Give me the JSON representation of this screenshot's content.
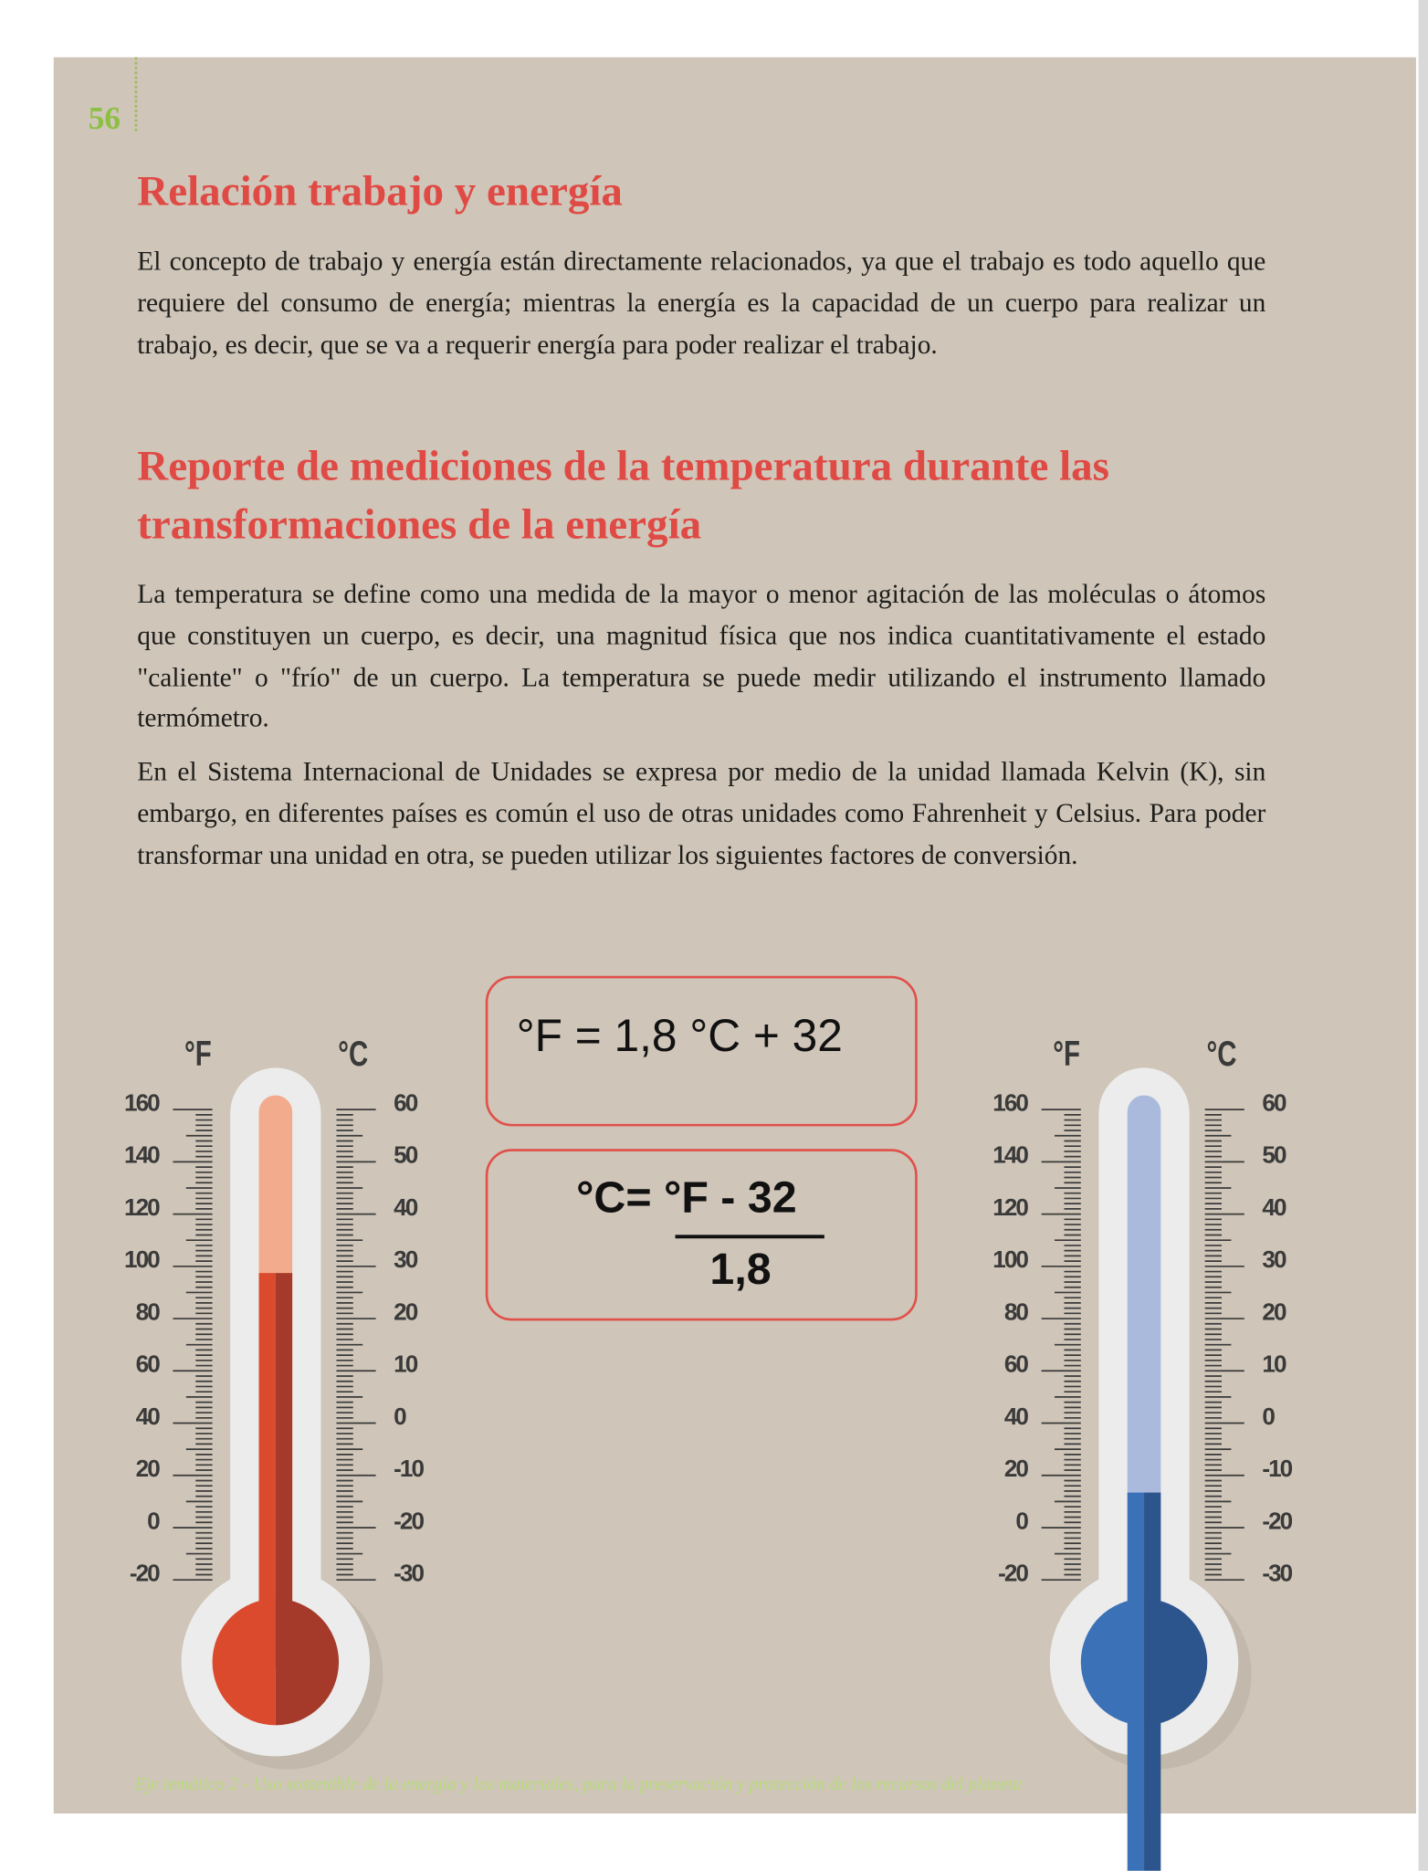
{
  "page_number": "56",
  "sections": [
    {
      "title": "Relación trabajo y energía",
      "paragraphs": [
        "El concepto de trabajo y energía están directamente relacionados, ya que el trabajo es todo aquello que requiere del consumo de energía; mientras la energía es la capacidad de un cuerpo para realizar un trabajo, es decir, que se va a requerir energía para poder realizar el trabajo."
      ]
    },
    {
      "title": "Reporte de mediciones de la temperatura durante las transformaciones de la energía",
      "paragraphs": [
        "La temperatura se define como una medida de la mayor o menor agitación de las moléculas o átomos que constituyen un cuerpo, es decir, una magnitud física que nos indica cuantitativamente el estado \"caliente\" o \"frío\" de un cuerpo. La temperatura se puede medir utilizando el instrumento llamado termómetro.",
        "En el Sistema Internacional de Unidades se expresa por medio de la unidad llamada  Kelvin (K), sin embargo, en diferentes países es común el uso de otras unidades como Fahrenheit y Celsius. Para poder transformar una unidad en otra, se pueden utilizar los siguientes factores de conversión."
      ]
    }
  ],
  "formulas": {
    "fahrenheit": "°F = 1,8 °C + 32",
    "celsius_numerator": "°C= °F - 32",
    "celsius_denominator": "1,8"
  },
  "thermometers": [
    {
      "f_unit": "°F",
      "c_unit": "°C",
      "f_ticks": [
        160,
        140,
        120,
        100,
        80,
        60,
        40,
        20,
        0,
        -20
      ],
      "c_ticks": [
        60,
        50,
        40,
        30,
        20,
        10,
        0,
        -10,
        -20,
        -30
      ]
    },
    {
      "f_unit": "°F",
      "c_unit": "°C",
      "f_ticks": [
        160,
        140,
        120,
        100,
        80,
        60,
        40,
        20,
        0,
        -20
      ],
      "c_ticks": [
        60,
        50,
        40,
        30,
        20,
        10,
        0,
        -10,
        -20,
        -30
      ]
    }
  ],
  "footer": "Eje temático 2 - Uso sostenible de la energía y los materiales, para la preservación y protección de los recursos del planeta"
}
